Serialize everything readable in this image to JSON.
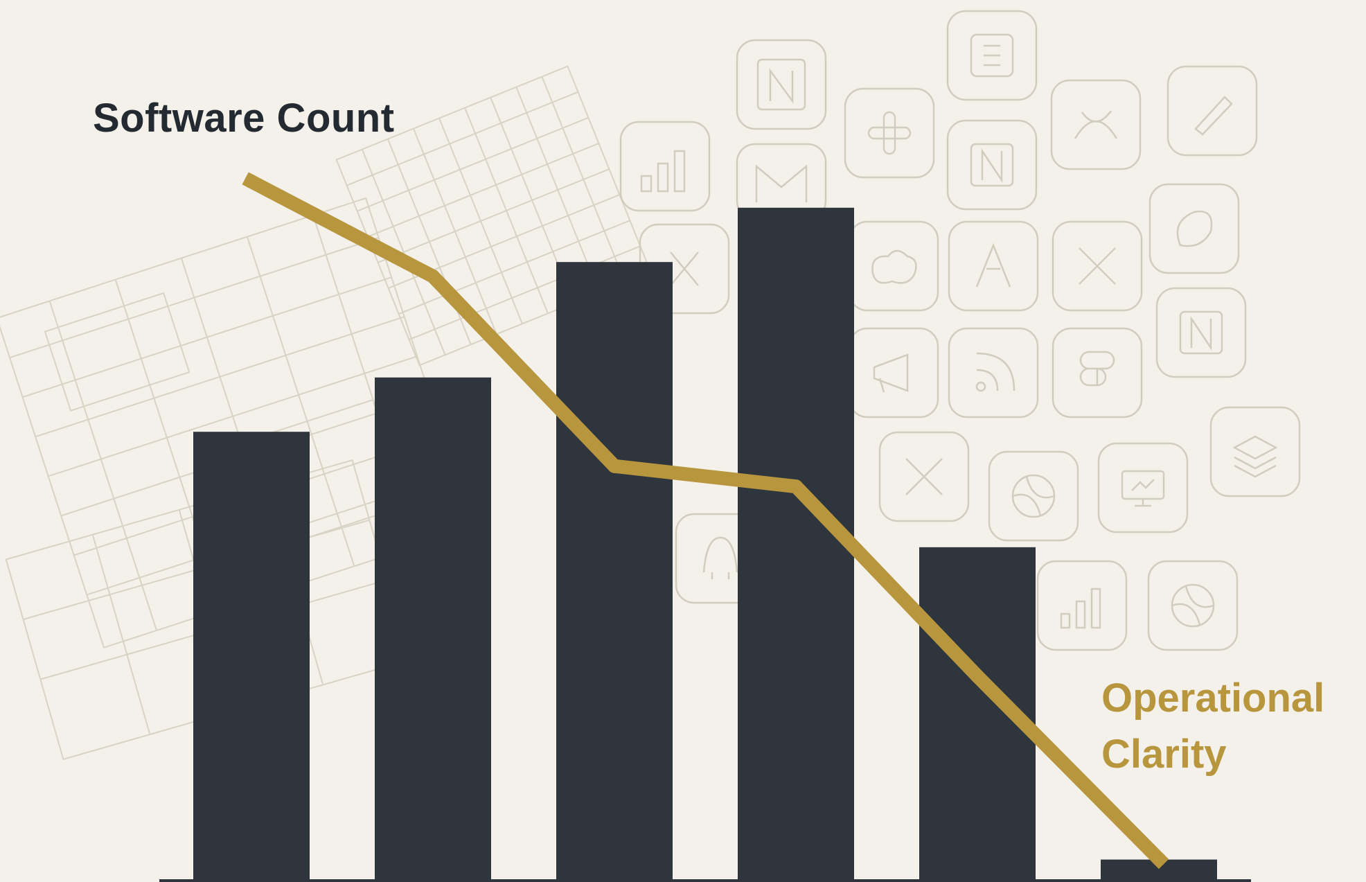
{
  "chart_data": {
    "type": "bar",
    "categories": [
      "",
      "",
      "",
      "",
      "",
      ""
    ],
    "series": [
      {
        "name": "Software Count",
        "kind": "bar",
        "values": [
          66,
          74,
          91,
          99,
          49,
          3
        ]
      },
      {
        "name": "Operational Clarity",
        "kind": "line",
        "values": [
          100,
          86,
          58,
          55,
          27,
          0
        ]
      }
    ],
    "ylim": [
      0,
      100
    ],
    "grid": false,
    "legend": "none",
    "colors": {
      "background": "#f4f1ea",
      "bar": "#2e353d",
      "line": "#b8963e",
      "bar_label": "#232a31",
      "line_label": "#b8963e",
      "axis": "#2e353d"
    }
  },
  "labels": {
    "bars_label": "Software Count",
    "line_label_1": "Operational",
    "line_label_2": "Clarity"
  },
  "background_icons": [
    "bar-chart-icon",
    "gmail-icon",
    "slack-icon",
    "notion-icon",
    "airtable-icon",
    "salesforce-icon",
    "figma-icon",
    "rss-icon",
    "asana-icon",
    "layers-icon",
    "monitor-icon",
    "evernote-icon",
    "linear-icon",
    "pen-icon",
    "x-icon"
  ]
}
